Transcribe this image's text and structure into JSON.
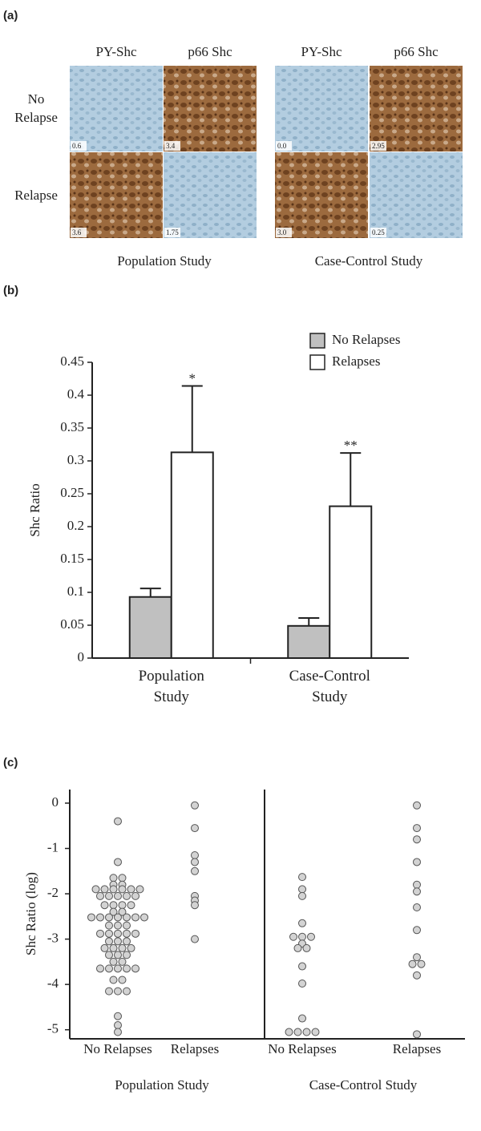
{
  "panels": {
    "a": "(a)",
    "b": "(b)",
    "c": "(c)"
  },
  "micrographs": {
    "columns": [
      "PY-Shc",
      "p66 Shc",
      "PY-Shc",
      "p66 Shc"
    ],
    "rows": [
      "No Relapse",
      "Relapse"
    ],
    "scores": [
      [
        "0.6",
        "3.4",
        "0.0",
        "2.95"
      ],
      [
        "3.6",
        "1.75",
        "3.0",
        "0.25"
      ]
    ],
    "studies": [
      "Population Study",
      "Case-Control Study"
    ]
  },
  "chart_data": [
    {
      "type": "bar",
      "ylabel": "Shc Ratio",
      "categories": [
        "Population Study",
        "Case-Control Study"
      ],
      "series": [
        {
          "name": "No Relapses",
          "color": "#c0c0c0",
          "values": [
            0.093,
            0.049
          ],
          "errors": [
            0.013,
            0.012
          ]
        },
        {
          "name": "Relapses",
          "color": "#ffffff",
          "values": [
            0.313,
            0.231
          ],
          "errors": [
            0.101,
            0.081
          ],
          "annotations": [
            "*",
            "**"
          ]
        }
      ],
      "ylim": [
        0,
        0.45
      ],
      "yticks": [
        0,
        0.05,
        0.1,
        0.15,
        0.2,
        0.25,
        0.3,
        0.35,
        0.4,
        0.45
      ],
      "legend": "upper right"
    },
    {
      "type": "dot",
      "ylabel": "Shc Ratio (log)",
      "categories": [
        "No Relapses",
        "Relapses",
        "No Relapses",
        "Relapses"
      ],
      "groups": [
        "Population Study",
        "Case-Control Study"
      ],
      "color": "#d3d3d3",
      "values": [
        [
          -0.4,
          -1.3,
          -1.65,
          -1.65,
          -1.8,
          -1.8,
          -1.9,
          -1.9,
          -1.9,
          -1.9,
          -1.9,
          -1.9,
          -2.05,
          -2.05,
          -2.05,
          -2.05,
          -2.05,
          -2.25,
          -2.25,
          -2.25,
          -2.25,
          -2.4,
          -2.4,
          -2.52,
          -2.52,
          -2.52,
          -2.52,
          -2.52,
          -2.52,
          -2.52,
          -2.7,
          -2.7,
          -2.7,
          -2.88,
          -2.88,
          -2.88,
          -2.88,
          -2.88,
          -3.05,
          -3.05,
          -3.05,
          -3.2,
          -3.2,
          -3.2,
          -3.2,
          -3.35,
          -3.35,
          -3.35,
          -3.5,
          -3.5,
          -3.65,
          -3.65,
          -3.65,
          -3.65,
          -3.65,
          -3.9,
          -3.9,
          -4.15,
          -4.15,
          -4.15,
          -4.7,
          -4.9,
          -5.05
        ],
        [
          -0.05,
          -0.55,
          -1.15,
          -1.3,
          -1.5,
          -2.05,
          -2.15,
          -2.25,
          -3.0
        ],
        [
          -1.63,
          -1.9,
          -2.05,
          -2.65,
          -2.95,
          -2.95,
          -2.95,
          -3.1,
          -3.2,
          -3.2,
          -3.6,
          -3.98,
          -4.75,
          -5.05,
          -5.05,
          -5.05,
          -5.05
        ],
        [
          -0.05,
          -0.55,
          -0.8,
          -1.3,
          -1.8,
          -1.95,
          -2.3,
          -2.8,
          -3.4,
          -3.55,
          -3.55,
          -3.8,
          -5.1
        ]
      ],
      "ylim": [
        -5.2,
        0.3
      ],
      "yticks": [
        0,
        -1,
        -2,
        -3,
        -4,
        -5
      ]
    }
  ]
}
